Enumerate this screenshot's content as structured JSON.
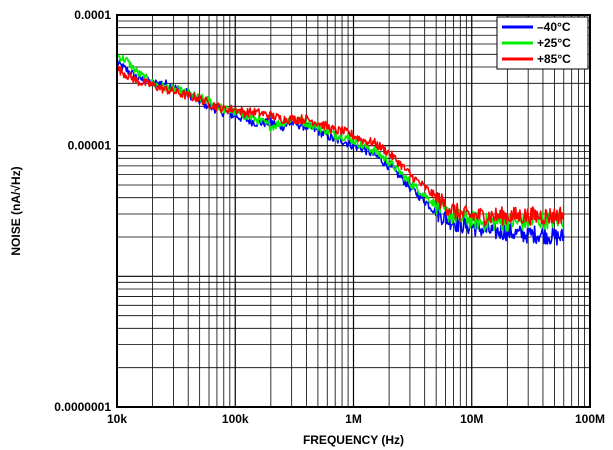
{
  "chart_data": {
    "type": "line",
    "title": "",
    "xlabel": "FREQUENCY (Hz)",
    "ylabel": "NOISE (nA/√Hz)",
    "x_scale": "log",
    "y_scale": "log",
    "xlim": [
      10000,
      100000000
    ],
    "ylim": [
      1e-07,
      0.0001
    ],
    "x_ticks": [
      {
        "value": 10000,
        "label": "10k"
      },
      {
        "value": 100000,
        "label": "100k"
      },
      {
        "value": 1000000,
        "label": "1M"
      },
      {
        "value": 10000000,
        "label": "10M"
      },
      {
        "value": 100000000,
        "label": "100M"
      }
    ],
    "y_ticks": [
      {
        "value": 0.0001,
        "label": "0.0001"
      },
      {
        "value": 1e-05,
        "label": "0.00001"
      },
      {
        "value": 1e-07,
        "label": "0.0000001"
      }
    ],
    "grid": true,
    "legend_position": "top-right",
    "series": [
      {
        "name": "–40°C",
        "color": "#0000ff",
        "x": [
          10000,
          12000,
          15000,
          20000,
          25000,
          30000,
          40000,
          50000,
          60000,
          70000,
          80000,
          100000,
          120000,
          150000,
          200000,
          250000,
          300000,
          400000,
          500000,
          600000,
          700000,
          800000,
          1000000,
          1200000,
          1500000,
          2000000,
          2500000,
          3000000,
          4000000,
          5000000,
          6000000,
          7000000,
          8000000,
          10000000,
          12000000,
          15000000,
          20000000,
          25000000,
          30000000,
          40000000,
          50000000,
          60000000
        ],
        "y": [
          4.3e-05,
          3.8e-05,
          3.3e-05,
          3e-05,
          3e-05,
          2.8e-05,
          2.5e-05,
          2.2e-05,
          2e-05,
          1.9e-05,
          1.8e-05,
          1.7e-05,
          1.6e-05,
          1.5e-05,
          1.5e-05,
          1.4e-05,
          1.5e-05,
          1.4e-05,
          1.3e-05,
          1.2e-05,
          1.1e-05,
          1.1e-05,
          1e-05,
          9.5e-06,
          8.5e-06,
          7e-06,
          5.8e-06,
          4.8e-06,
          3.8e-06,
          3.1e-06,
          2.8e-06,
          2.6e-06,
          2.5e-06,
          2.4e-06,
          2.3e-06,
          2.2e-06,
          2.2e-06,
          2.1e-06,
          2.1e-06,
          2.1e-06,
          2e-06,
          2e-06
        ]
      },
      {
        "name": "+25°C",
        "color": "#00ee00",
        "x": [
          10000,
          12000,
          15000,
          20000,
          25000,
          30000,
          40000,
          50000,
          60000,
          70000,
          80000,
          100000,
          120000,
          150000,
          200000,
          250000,
          300000,
          400000,
          500000,
          600000,
          700000,
          800000,
          1000000,
          1200000,
          1500000,
          2000000,
          2500000,
          3000000,
          4000000,
          5000000,
          6000000,
          7000000,
          8000000,
          10000000,
          12000000,
          15000000,
          20000000,
          25000000,
          30000000,
          40000000,
          50000000,
          60000000
        ],
        "y": [
          4.9e-05,
          4.5e-05,
          3.6e-05,
          3e-05,
          2.8e-05,
          2.7e-05,
          2.5e-05,
          2.3e-05,
          2.2e-05,
          2e-05,
          1.9e-05,
          1.8e-05,
          1.7e-05,
          1.6e-05,
          1.4e-05,
          1.5e-05,
          1.6e-05,
          1.5e-05,
          1.4e-05,
          1.3e-05,
          1.2e-05,
          1.2e-05,
          1.1e-05,
          1e-05,
          9.2e-06,
          7.5e-06,
          6.2e-06,
          5.2e-06,
          4.2e-06,
          3.5e-06,
          3.1e-06,
          2.9e-06,
          2.8e-06,
          2.7e-06,
          2.6e-06,
          2.6e-06,
          2.6e-06,
          2.6e-06,
          2.6e-06,
          2.7e-06,
          2.7e-06,
          2.7e-06
        ]
      },
      {
        "name": "+85°C",
        "color": "#ff0000",
        "x": [
          10000,
          12000,
          15000,
          20000,
          25000,
          30000,
          40000,
          50000,
          60000,
          70000,
          80000,
          100000,
          120000,
          150000,
          200000,
          250000,
          300000,
          400000,
          500000,
          600000,
          700000,
          800000,
          1000000,
          1200000,
          1500000,
          2000000,
          2500000,
          3000000,
          4000000,
          5000000,
          6000000,
          7000000,
          8000000,
          10000000,
          12000000,
          15000000,
          20000000,
          25000000,
          30000000,
          40000000,
          50000000,
          60000000
        ],
        "y": [
          3.9e-05,
          3.5e-05,
          3.1e-05,
          2.9e-05,
          2.7e-05,
          2.6e-05,
          2.4e-05,
          2.3e-05,
          2.1e-05,
          2e-05,
          1.9e-05,
          1.9e-05,
          1.8e-05,
          1.8e-05,
          1.7e-05,
          1.6e-05,
          1.6e-05,
          1.6e-05,
          1.5e-05,
          1.4e-05,
          1.3e-05,
          1.3e-05,
          1.2e-05,
          1.1e-05,
          1.05e-05,
          8.8e-06,
          7.2e-06,
          6e-06,
          4.8e-06,
          4e-06,
          3.5e-06,
          3.2e-06,
          3e-06,
          2.9e-06,
          2.9e-06,
          2.9e-06,
          2.9e-06,
          2.9e-06,
          2.9e-06,
          2.9e-06,
          2.9e-06,
          3e-06
        ]
      }
    ]
  }
}
